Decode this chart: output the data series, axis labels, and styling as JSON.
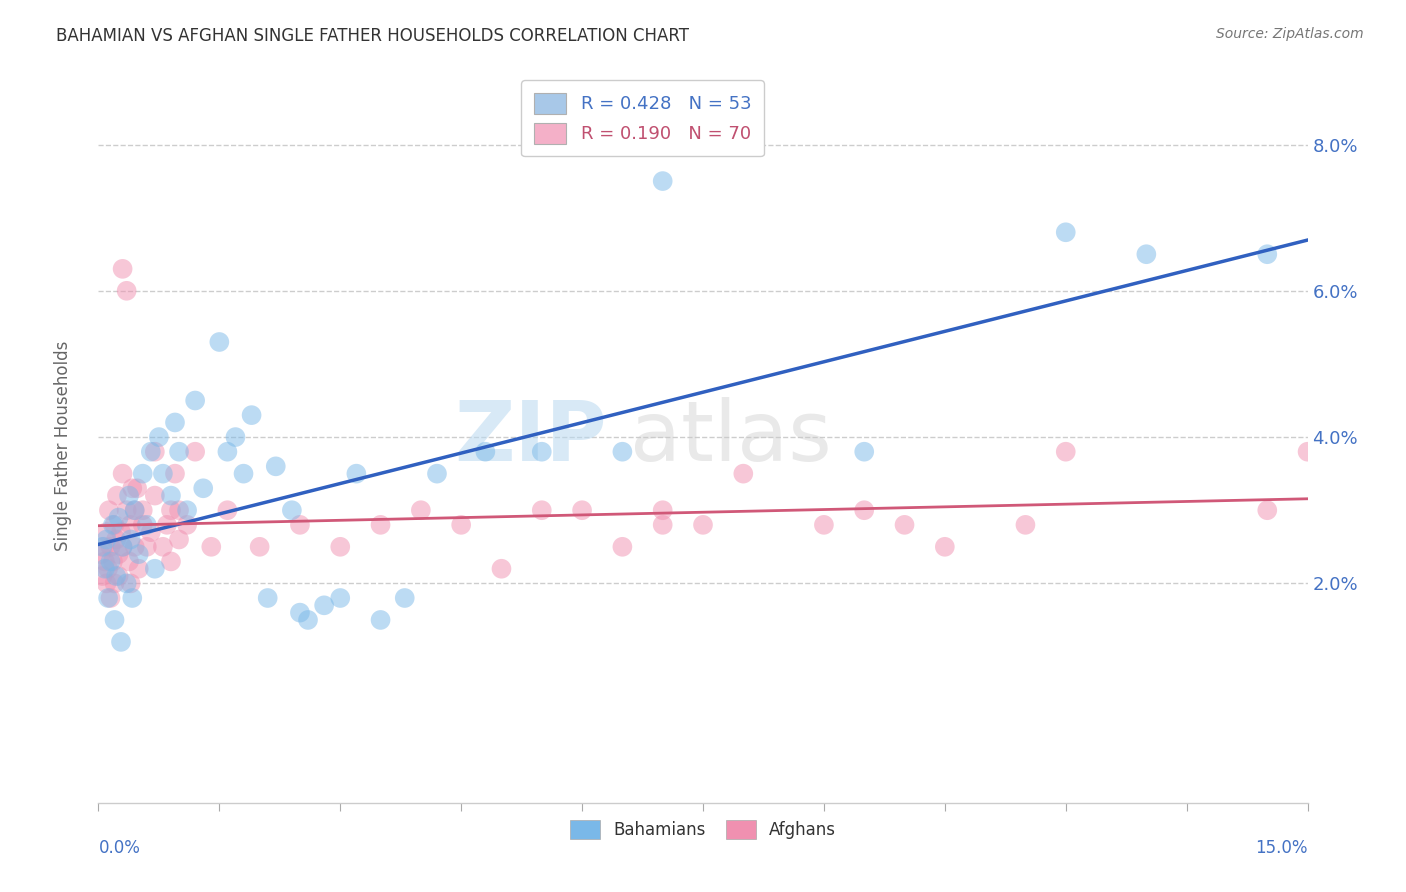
{
  "title": "BAHAMIAN VS AFGHAN SINGLE FATHER HOUSEHOLDS CORRELATION CHART",
  "source": "Source: ZipAtlas.com",
  "ylabel": "Single Father Households",
  "xlim": [
    0.0,
    15.0
  ],
  "ylim": [
    -1.0,
    9.0
  ],
  "yticks": [
    2.0,
    4.0,
    6.0,
    8.0
  ],
  "xtick_minor": [
    0.0,
    1.5,
    3.0,
    4.5,
    6.0,
    7.5,
    9.0,
    10.5,
    12.0,
    13.5,
    15.0
  ],
  "watermark_zip": "ZIP",
  "watermark_atlas": "atlas",
  "legend_entries": [
    {
      "label": "R = 0.428   N = 53",
      "patch_color": "#a8c8e8",
      "text_color": "#4472c4"
    },
    {
      "label": "R = 0.190   N = 70",
      "patch_color": "#f4b0c8",
      "text_color": "#c05070"
    }
  ],
  "bahamian_color": "#7ab8e8",
  "afghan_color": "#f090b0",
  "regression_blue": "#3060c0",
  "regression_pink": "#d05878",
  "bahamian_scatter": [
    [
      0.05,
      2.5
    ],
    [
      0.08,
      2.2
    ],
    [
      0.1,
      2.6
    ],
    [
      0.12,
      1.8
    ],
    [
      0.15,
      2.3
    ],
    [
      0.18,
      2.8
    ],
    [
      0.2,
      1.5
    ],
    [
      0.22,
      2.1
    ],
    [
      0.25,
      2.9
    ],
    [
      0.28,
      1.2
    ],
    [
      0.3,
      2.5
    ],
    [
      0.35,
      2.0
    ],
    [
      0.38,
      3.2
    ],
    [
      0.4,
      2.6
    ],
    [
      0.42,
      1.8
    ],
    [
      0.45,
      3.0
    ],
    [
      0.5,
      2.4
    ],
    [
      0.55,
      3.5
    ],
    [
      0.6,
      2.8
    ],
    [
      0.65,
      3.8
    ],
    [
      0.7,
      2.2
    ],
    [
      0.75,
      4.0
    ],
    [
      0.8,
      3.5
    ],
    [
      0.9,
      3.2
    ],
    [
      0.95,
      4.2
    ],
    [
      1.0,
      3.8
    ],
    [
      1.1,
      3.0
    ],
    [
      1.2,
      4.5
    ],
    [
      1.3,
      3.3
    ],
    [
      1.5,
      5.3
    ],
    [
      1.6,
      3.8
    ],
    [
      1.7,
      4.0
    ],
    [
      1.8,
      3.5
    ],
    [
      1.9,
      4.3
    ],
    [
      2.1,
      1.8
    ],
    [
      2.2,
      3.6
    ],
    [
      2.4,
      3.0
    ],
    [
      2.5,
      1.6
    ],
    [
      2.6,
      1.5
    ],
    [
      2.8,
      1.7
    ],
    [
      3.0,
      1.8
    ],
    [
      3.2,
      3.5
    ],
    [
      3.5,
      1.5
    ],
    [
      3.8,
      1.8
    ],
    [
      4.2,
      3.5
    ],
    [
      4.8,
      3.8
    ],
    [
      5.5,
      3.8
    ],
    [
      6.5,
      3.8
    ],
    [
      7.0,
      7.5
    ],
    [
      9.5,
      3.8
    ],
    [
      12.0,
      6.8
    ],
    [
      13.0,
      6.5
    ],
    [
      14.5,
      6.5
    ]
  ],
  "afghan_scatter": [
    [
      0.03,
      2.4
    ],
    [
      0.05,
      2.1
    ],
    [
      0.07,
      2.5
    ],
    [
      0.08,
      2.3
    ],
    [
      0.1,
      2.0
    ],
    [
      0.1,
      2.7
    ],
    [
      0.12,
      2.2
    ],
    [
      0.13,
      3.0
    ],
    [
      0.15,
      2.5
    ],
    [
      0.15,
      1.8
    ],
    [
      0.18,
      2.3
    ],
    [
      0.2,
      2.8
    ],
    [
      0.2,
      2.0
    ],
    [
      0.22,
      2.6
    ],
    [
      0.23,
      3.2
    ],
    [
      0.25,
      2.4
    ],
    [
      0.25,
      2.1
    ],
    [
      0.28,
      2.7
    ],
    [
      0.3,
      2.5
    ],
    [
      0.3,
      3.5
    ],
    [
      0.3,
      6.3
    ],
    [
      0.35,
      6.0
    ],
    [
      0.35,
      3.0
    ],
    [
      0.38,
      2.3
    ],
    [
      0.4,
      2.8
    ],
    [
      0.4,
      2.0
    ],
    [
      0.42,
      3.3
    ],
    [
      0.45,
      3.0
    ],
    [
      0.45,
      2.5
    ],
    [
      0.48,
      3.3
    ],
    [
      0.5,
      2.2
    ],
    [
      0.55,
      3.0
    ],
    [
      0.55,
      2.8
    ],
    [
      0.6,
      2.5
    ],
    [
      0.65,
      2.7
    ],
    [
      0.7,
      3.2
    ],
    [
      0.7,
      3.8
    ],
    [
      0.8,
      2.5
    ],
    [
      0.85,
      2.8
    ],
    [
      0.9,
      3.0
    ],
    [
      0.9,
      2.3
    ],
    [
      0.95,
      3.5
    ],
    [
      1.0,
      3.0
    ],
    [
      1.0,
      2.6
    ],
    [
      1.1,
      2.8
    ],
    [
      1.2,
      3.8
    ],
    [
      1.4,
      2.5
    ],
    [
      1.6,
      3.0
    ],
    [
      2.0,
      2.5
    ],
    [
      2.5,
      2.8
    ],
    [
      3.0,
      2.5
    ],
    [
      3.5,
      2.8
    ],
    [
      4.0,
      3.0
    ],
    [
      4.5,
      2.8
    ],
    [
      5.0,
      2.2
    ],
    [
      5.5,
      3.0
    ],
    [
      6.0,
      3.0
    ],
    [
      6.5,
      2.5
    ],
    [
      7.0,
      2.8
    ],
    [
      7.0,
      3.0
    ],
    [
      7.5,
      2.8
    ],
    [
      8.0,
      3.5
    ],
    [
      9.0,
      2.8
    ],
    [
      9.5,
      3.0
    ],
    [
      10.0,
      2.8
    ],
    [
      10.5,
      2.5
    ],
    [
      11.5,
      2.8
    ],
    [
      12.0,
      3.8
    ],
    [
      14.5,
      3.0
    ],
    [
      15.0,
      3.8
    ]
  ],
  "background_color": "#ffffff",
  "grid_color": "#c8c8c8",
  "title_color": "#333333",
  "tick_color": "#4472c4",
  "spine_color": "#cccccc"
}
